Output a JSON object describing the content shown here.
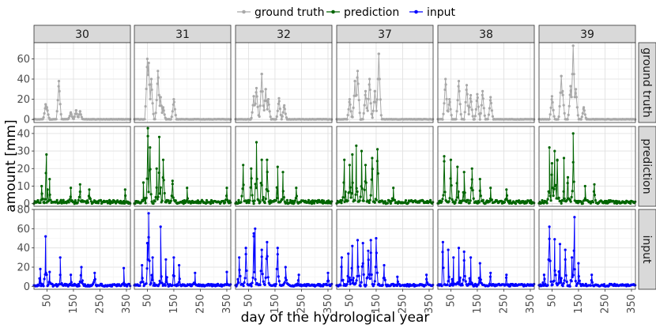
{
  "chart_data": {
    "type": "line",
    "xlabel": "day of the hydrological year",
    "ylabel": "amount [mm]",
    "legend": {
      "position": "top",
      "entries": [
        {
          "name": "ground truth",
          "color": "#a9a9a9"
        },
        {
          "name": "prediction",
          "color": "#006400"
        },
        {
          "name": "input",
          "color": "#0000ff"
        }
      ]
    },
    "columns": [
      "30",
      "31",
      "32",
      "37",
      "38",
      "39"
    ],
    "rows": [
      {
        "label": "ground truth",
        "color": "#a9a9a9",
        "ylim": [
          -3,
          76
        ],
        "yticks": [
          0,
          20,
          40,
          60
        ]
      },
      {
        "label": "prediction",
        "color": "#006400",
        "ylim": [
          -1.5,
          44
        ],
        "yticks": [
          0,
          10,
          20,
          30,
          40
        ]
      },
      {
        "label": "input",
        "color": "#0000ff",
        "ylim": [
          -3,
          80
        ],
        "yticks": [
          0,
          20,
          40,
          60,
          80
        ]
      }
    ],
    "xlim": [
      1,
      365
    ],
    "xticks": [
      50,
      150,
      250,
      350
    ],
    "xtick_labels": [
      "50",
      "150",
      "250",
      "350"
    ],
    "peaks": {
      "ground truth": {
        "30": [
          [
            45,
            15
          ],
          [
            50,
            12
          ],
          [
            95,
            38
          ],
          [
            140,
            7
          ],
          [
            160,
            9
          ],
          [
            175,
            8
          ]
        ],
        "31": [
          [
            50,
            60
          ],
          [
            55,
            56
          ],
          [
            65,
            40
          ],
          [
            90,
            48
          ],
          [
            100,
            22
          ],
          [
            110,
            12
          ],
          [
            150,
            20
          ]
        ],
        "32": [
          [
            70,
            23
          ],
          [
            80,
            31
          ],
          [
            100,
            45
          ],
          [
            115,
            30
          ],
          [
            125,
            20
          ],
          [
            165,
            21
          ],
          [
            185,
            14
          ]
        ],
        "37": [
          [
            50,
            20
          ],
          [
            70,
            38
          ],
          [
            80,
            48
          ],
          [
            110,
            28
          ],
          [
            125,
            40
          ],
          [
            145,
            28
          ],
          [
            160,
            65
          ]
        ],
        "38": [
          [
            30,
            40
          ],
          [
            45,
            20
          ],
          [
            80,
            38
          ],
          [
            110,
            34
          ],
          [
            125,
            24
          ],
          [
            150,
            25
          ],
          [
            170,
            28
          ],
          [
            200,
            22
          ]
        ],
        "39": [
          [
            50,
            23
          ],
          [
            85,
            43
          ],
          [
            90,
            28
          ],
          [
            120,
            33
          ],
          [
            130,
            73
          ],
          [
            140,
            30
          ],
          [
            170,
            12
          ]
        ]
      },
      "prediction": {
        "30": [
          [
            30,
            10
          ],
          [
            48,
            28
          ],
          [
            60,
            14
          ],
          [
            140,
            9
          ],
          [
            175,
            11
          ],
          [
            210,
            8
          ],
          [
            345,
            8
          ]
        ],
        "31": [
          [
            35,
            12
          ],
          [
            52,
            43
          ],
          [
            60,
            32
          ],
          [
            85,
            20
          ],
          [
            95,
            38
          ],
          [
            110,
            25
          ],
          [
            145,
            13
          ],
          [
            200,
            9
          ],
          [
            350,
            9
          ]
        ],
        "32": [
          [
            30,
            22
          ],
          [
            60,
            20
          ],
          [
            80,
            35
          ],
          [
            100,
            25
          ],
          [
            120,
            25
          ],
          [
            160,
            21
          ],
          [
            180,
            18
          ],
          [
            230,
            9
          ]
        ],
        "37": [
          [
            30,
            25
          ],
          [
            50,
            22
          ],
          [
            60,
            28
          ],
          [
            75,
            33
          ],
          [
            95,
            30
          ],
          [
            110,
            22
          ],
          [
            135,
            26
          ],
          [
            155,
            31
          ],
          [
            215,
            9
          ]
        ],
        "38": [
          [
            25,
            27
          ],
          [
            50,
            25
          ],
          [
            75,
            21
          ],
          [
            100,
            18
          ],
          [
            130,
            20
          ],
          [
            160,
            14
          ],
          [
            200,
            9
          ],
          [
            260,
            8
          ]
        ],
        "39": [
          [
            40,
            32
          ],
          [
            50,
            23
          ],
          [
            60,
            30
          ],
          [
            70,
            25
          ],
          [
            95,
            26
          ],
          [
            110,
            15
          ],
          [
            130,
            40
          ],
          [
            175,
            10
          ],
          [
            210,
            11
          ]
        ]
      },
      "input": {
        "30": [
          [
            25,
            18
          ],
          [
            45,
            52
          ],
          [
            60,
            15
          ],
          [
            100,
            30
          ],
          [
            140,
            12
          ],
          [
            180,
            20
          ],
          [
            230,
            14
          ],
          [
            340,
            19
          ]
        ],
        "31": [
          [
            30,
            22
          ],
          [
            50,
            45
          ],
          [
            55,
            76
          ],
          [
            70,
            30
          ],
          [
            100,
            62
          ],
          [
            120,
            28
          ],
          [
            150,
            30
          ],
          [
            170,
            22
          ],
          [
            230,
            14
          ],
          [
            350,
            15
          ]
        ],
        "32": [
          [
            15,
            30
          ],
          [
            40,
            40
          ],
          [
            70,
            55
          ],
          [
            75,
            60
          ],
          [
            100,
            38
          ],
          [
            120,
            46
          ],
          [
            160,
            40
          ],
          [
            190,
            20
          ],
          [
            240,
            12
          ],
          [
            350,
            14
          ]
        ],
        "37": [
          [
            20,
            30
          ],
          [
            45,
            34
          ],
          [
            60,
            42
          ],
          [
            80,
            48
          ],
          [
            100,
            45
          ],
          [
            120,
            37
          ],
          [
            130,
            48
          ],
          [
            150,
            50
          ],
          [
            180,
            22
          ],
          [
            230,
            10
          ],
          [
            340,
            12
          ]
        ],
        "38": [
          [
            20,
            46
          ],
          [
            40,
            38
          ],
          [
            60,
            30
          ],
          [
            80,
            40
          ],
          [
            100,
            36
          ],
          [
            125,
            30
          ],
          [
            160,
            24
          ],
          [
            200,
            14
          ],
          [
            260,
            12
          ]
        ],
        "39": [
          [
            20,
            12
          ],
          [
            40,
            62
          ],
          [
            60,
            49
          ],
          [
            80,
            44
          ],
          [
            100,
            38
          ],
          [
            125,
            30
          ],
          [
            135,
            72
          ],
          [
            150,
            24
          ],
          [
            200,
            12
          ]
        ]
      }
    }
  }
}
